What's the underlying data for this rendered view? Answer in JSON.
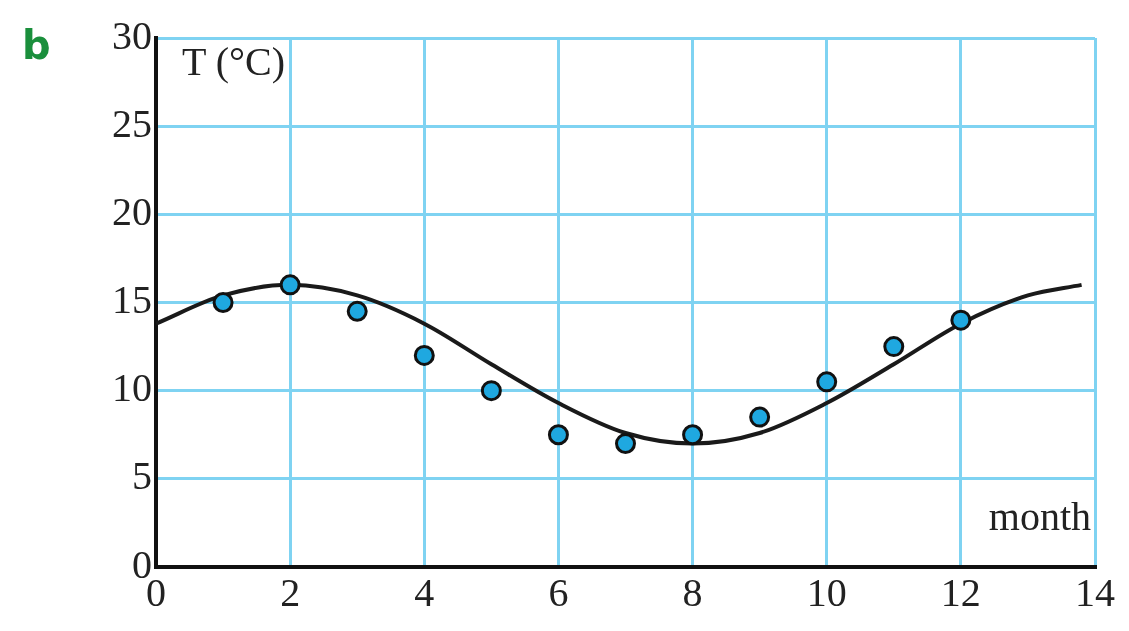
{
  "chart_data": {
    "type": "scatter",
    "xlabel": "month",
    "ylabel": "T (°C)",
    "annotations": [
      "b"
    ],
    "xlim": [
      0,
      14
    ],
    "xticks": [
      0,
      2,
      4,
      6,
      8,
      10,
      12,
      14
    ],
    "ylim": [
      0,
      30
    ],
    "yticks": [
      0,
      5,
      10,
      15,
      20,
      25,
      30
    ],
    "grid": true,
    "legend": false,
    "marker": "circle",
    "series": [
      {
        "type": "scatter",
        "color": "#1fa8e0",
        "x": [
          1,
          2,
          3,
          4,
          5,
          6,
          7,
          8,
          9,
          10,
          11,
          12
        ],
        "values": [
          15,
          16,
          14.5,
          12,
          10,
          7.5,
          7,
          7.5,
          8.5,
          10.5,
          12.5,
          14
        ]
      },
      {
        "type": "line",
        "color": "#1a1a1a",
        "marker": "none",
        "x": [
          0,
          1,
          2,
          3,
          4,
          5,
          6,
          7,
          8,
          9,
          10,
          11,
          12,
          13,
          13.8
        ],
        "values": [
          13.8,
          15.4,
          16,
          15.4,
          13.8,
          11.5,
          9.3,
          7.6,
          7,
          7.6,
          9.3,
          11.5,
          13.8,
          15.4,
          16
        ]
      }
    ]
  }
}
